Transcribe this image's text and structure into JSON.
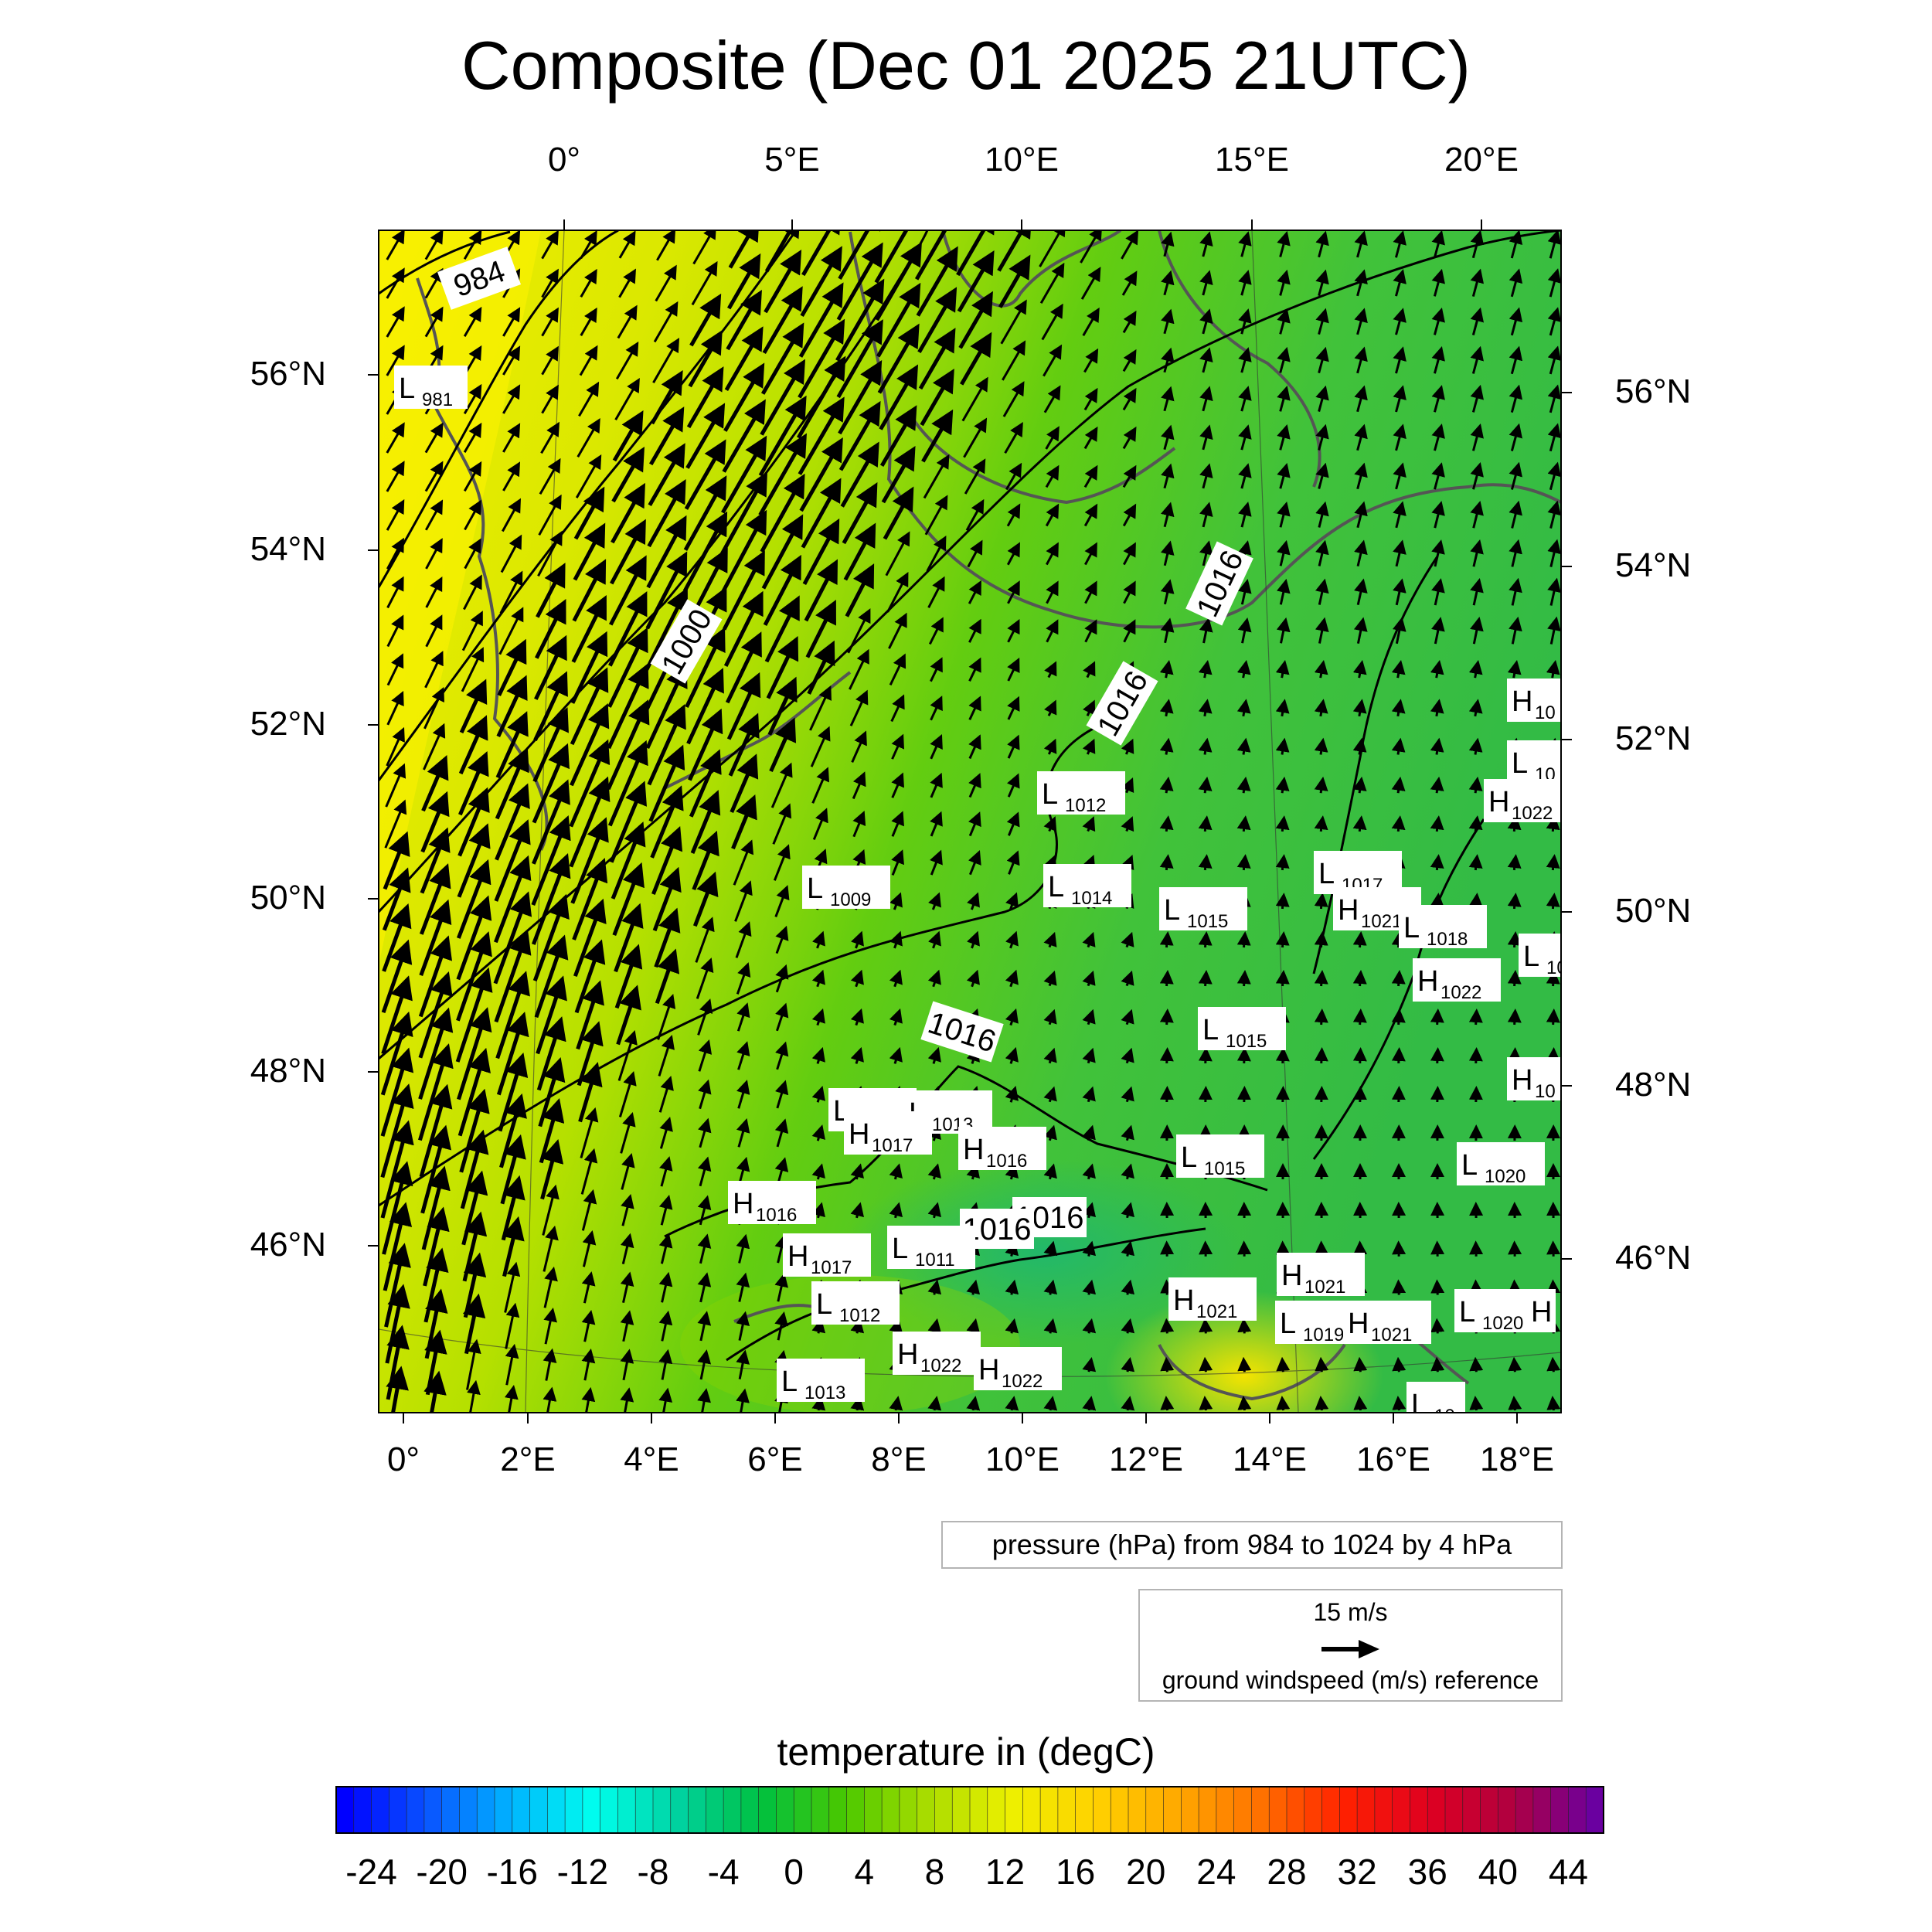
{
  "title": "Composite (Dec 01 2025 21UTC)",
  "top_lon_labels": [
    "0°",
    "5°E",
    "10°E",
    "15°E",
    "20°E"
  ],
  "bottom_lon_labels": [
    "0°",
    "2°E",
    "4°E",
    "6°E",
    "8°E",
    "10°E",
    "12°E",
    "14°E",
    "16°E",
    "18°E"
  ],
  "left_lat_labels": [
    "56°N",
    "54°N",
    "52°N",
    "50°N",
    "48°N",
    "46°N"
  ],
  "right_lat_labels": [
    "56°N",
    "54°N",
    "52°N",
    "50°N",
    "48°N",
    "46°N"
  ],
  "contour_info": "pressure (hPa) from 984 to 1024 by 4 hPa",
  "wind_ref": {
    "speed": "15 m/s",
    "label": "ground windspeed (m/s) reference"
  },
  "colorbar": {
    "title": "temperature in (degC)",
    "ticks": [
      "-24",
      "-20",
      "-16",
      "-12",
      "-8",
      "-4",
      "0",
      "4",
      "8",
      "12",
      "16",
      "20",
      "24",
      "28",
      "32",
      "36",
      "40",
      "44"
    ],
    "range": [
      -26,
      46
    ]
  },
  "isobar_labels": [
    "984",
    "1000",
    "1016",
    "1016",
    "1016",
    "1016",
    "1016"
  ],
  "pressure_centers": [
    {
      "type": "L",
      "value": "981"
    },
    {
      "type": "L",
      "value": "1012"
    },
    {
      "type": "L",
      "value": "1009"
    },
    {
      "type": "L",
      "value": "1014"
    },
    {
      "type": "L",
      "value": "1015"
    },
    {
      "type": "L",
      "value": "1017"
    },
    {
      "type": "H",
      "value": "1021"
    },
    {
      "type": "L",
      "value": "1018"
    },
    {
      "type": "H",
      "value": "1022"
    },
    {
      "type": "L",
      "value": "1015"
    },
    {
      "type": "L",
      "value": "1013"
    },
    {
      "type": "L",
      "value": "1013"
    },
    {
      "type": "H",
      "value": "1017"
    },
    {
      "type": "H",
      "value": "1016"
    },
    {
      "type": "L",
      "value": "1015"
    },
    {
      "type": "L",
      "value": "1020"
    },
    {
      "type": "H",
      "value": "1016"
    },
    {
      "type": "L",
      "value": "1011"
    },
    {
      "type": "H",
      "value": "1017"
    },
    {
      "type": "L",
      "value": "1012"
    },
    {
      "type": "H",
      "value": "1021"
    },
    {
      "type": "H",
      "value": "1021"
    },
    {
      "type": "L",
      "value": "1019"
    },
    {
      "type": "H",
      "value": "1021"
    },
    {
      "type": "L",
      "value": "1020"
    },
    {
      "type": "H",
      "value": "1022"
    },
    {
      "type": "H",
      "value": "1022"
    },
    {
      "type": "L",
      "value": "1013"
    },
    {
      "type": "H",
      "value": "10"
    },
    {
      "type": "L",
      "value": "10"
    },
    {
      "type": "H",
      "value": "1022"
    },
    {
      "type": "L",
      "value": "10"
    },
    {
      "type": "H",
      "value": "10"
    },
    {
      "type": "H",
      "value": ""
    },
    {
      "type": "L",
      "value": "10"
    }
  ]
}
